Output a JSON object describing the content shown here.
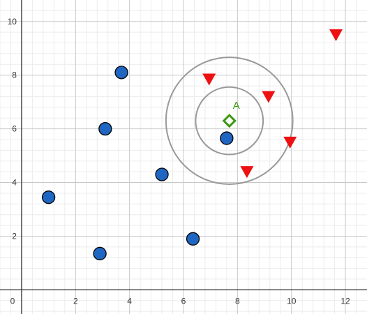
{
  "chart_data": {
    "type": "scatter",
    "xlim": [
      -0.8,
      12.8
    ],
    "ylim": [
      -0.9,
      10.8
    ],
    "x_ticks": [
      "0",
      "2",
      "4",
      "6",
      "8",
      "10",
      "12"
    ],
    "y_ticks": [
      "2",
      "4",
      "6",
      "8",
      "10"
    ],
    "x_tick_values": [
      0,
      2,
      4,
      6,
      8,
      10,
      12
    ],
    "y_tick_values": [
      2,
      4,
      6,
      8,
      10
    ],
    "grid": true,
    "minor_grid_step": 0.4,
    "series": [
      {
        "marker": "circle",
        "color": "#1f66c2",
        "points": [
          [
            1.0,
            3.45
          ],
          [
            2.9,
            1.35
          ],
          [
            3.1,
            6.0
          ],
          [
            3.7,
            8.1
          ],
          [
            5.2,
            4.3
          ],
          [
            6.35,
            1.9
          ],
          [
            7.6,
            5.65
          ]
        ]
      },
      {
        "marker": "triangle-down",
        "color": "#ee1111",
        "points": [
          [
            6.95,
            7.85
          ],
          [
            8.35,
            4.4
          ],
          [
            9.15,
            7.2
          ],
          [
            9.95,
            5.5
          ],
          [
            11.65,
            9.5
          ]
        ]
      }
    ],
    "query_point": {
      "label": "A",
      "x": 7.7,
      "y": 6.3,
      "marker": "diamond",
      "color": "#3a9a10"
    },
    "circles": [
      {
        "cx": 7.7,
        "cy": 6.3,
        "r": 1.25,
        "color": "#999999"
      },
      {
        "cx": 7.7,
        "cy": 6.3,
        "r": 2.35,
        "color": "#999999"
      }
    ]
  }
}
